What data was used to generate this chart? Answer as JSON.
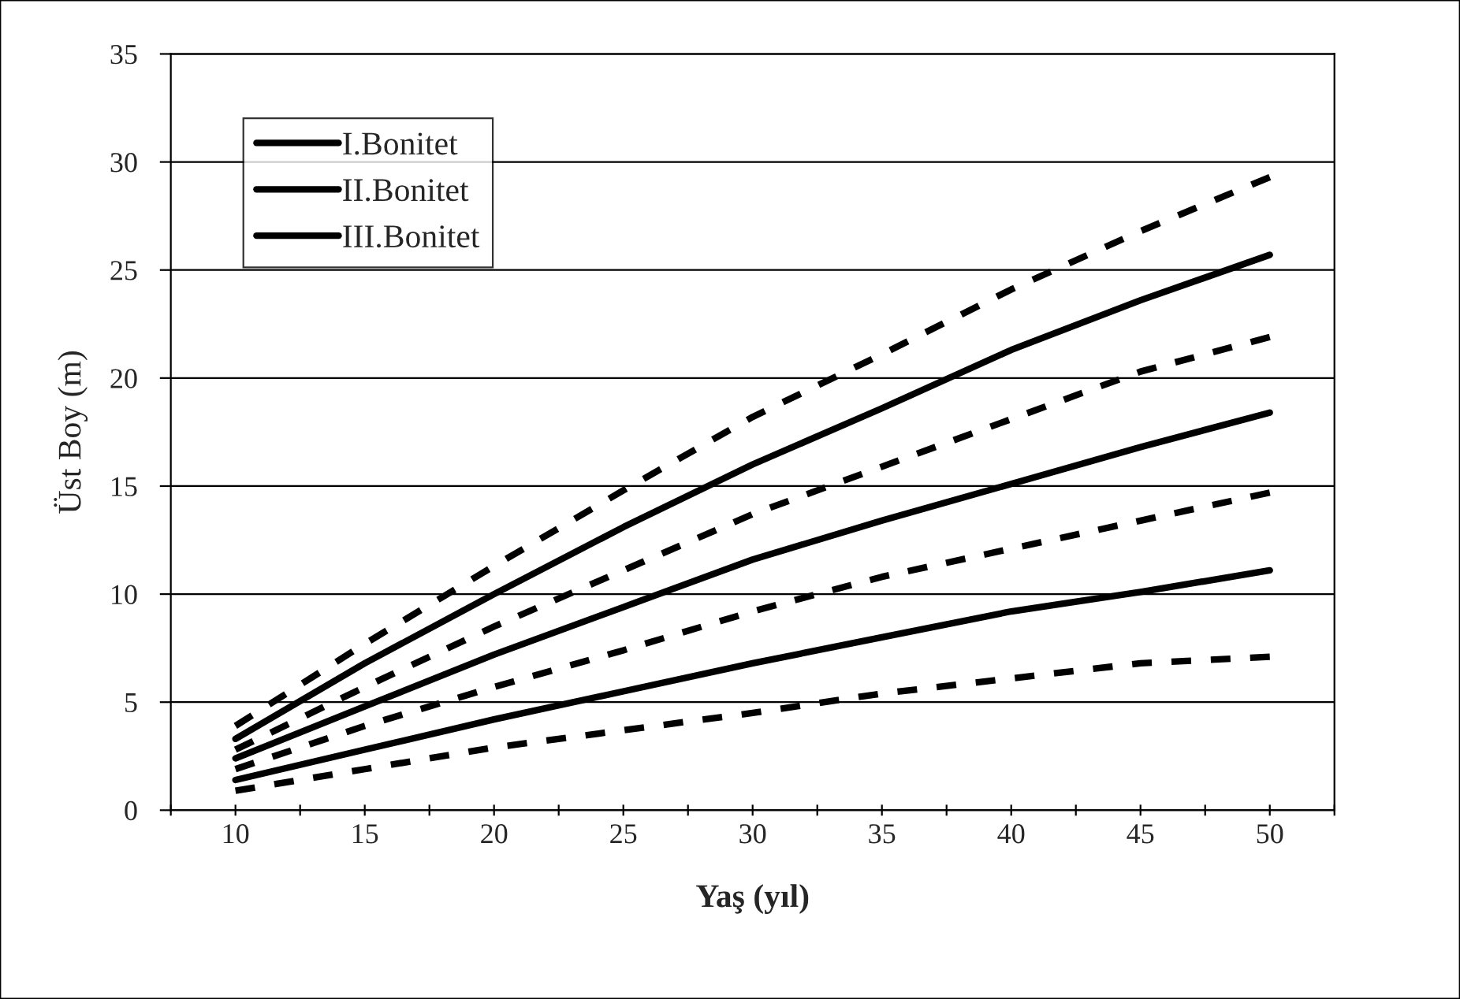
{
  "chart_data": {
    "type": "line",
    "xlabel": "Yaş (yıl)",
    "ylabel": "Üst Boy (m)",
    "x": [
      10,
      15,
      20,
      25,
      30,
      35,
      40,
      45,
      50
    ],
    "series": [
      {
        "name": "I.Bonitet",
        "color": "#000000",
        "line_style": "solid",
        "values": [
          3.3,
          6.8,
          10.0,
          13.1,
          16.0,
          18.6,
          21.3,
          23.6,
          25.7
        ]
      },
      {
        "name": "II.Bonitet",
        "color": "#000000",
        "line_style": "solid",
        "values": [
          2.4,
          4.8,
          7.2,
          9.4,
          11.6,
          13.4,
          15.1,
          16.8,
          18.4
        ]
      },
      {
        "name": "III.Bonitet",
        "color": "#000000",
        "line_style": "solid",
        "values": [
          1.4,
          2.8,
          4.2,
          5.5,
          6.8,
          8.0,
          9.2,
          10.1,
          11.1
        ]
      },
      {
        "color": "#000000",
        "line_style": "dashed",
        "values": [
          3.9,
          7.7,
          11.3,
          14.8,
          18.2,
          21.1,
          24.1,
          26.8,
          29.3
        ]
      },
      {
        "color": "#000000",
        "line_style": "dashed",
        "values": [
          2.8,
          5.7,
          8.5,
          11.1,
          13.7,
          15.9,
          18.1,
          20.3,
          21.9
        ]
      },
      {
        "color": "#000000",
        "line_style": "dashed",
        "values": [
          1.9,
          3.9,
          5.7,
          7.4,
          9.2,
          10.8,
          12.1,
          13.4,
          14.7
        ]
      },
      {
        "color": "#000000",
        "line_style": "dashed",
        "values": [
          0.9,
          1.9,
          2.9,
          3.7,
          4.5,
          5.4,
          6.1,
          6.8,
          7.1
        ]
      }
    ],
    "xlim": [
      7.5,
      52.5
    ],
    "xticks": [
      {
        "value": 7.5,
        "label": null
      },
      10,
      {
        "value": 12.5,
        "label": null
      },
      15,
      {
        "value": 17.5,
        "label": null
      },
      20,
      {
        "value": 22.5,
        "label": null
      },
      25,
      {
        "value": 27.5,
        "label": null
      },
      30,
      {
        "value": 32.5,
        "label": null
      },
      35,
      {
        "value": 37.5,
        "label": null
      },
      40,
      {
        "value": 42.5,
        "label": null
      },
      45,
      {
        "value": 47.5,
        "label": null
      },
      50,
      {
        "value": 52.5,
        "label": null
      }
    ],
    "ylim": [
      0,
      35
    ],
    "yticks": [
      0,
      5,
      10,
      15,
      20,
      25,
      30,
      35
    ],
    "grid": "y",
    "legend": "top left",
    "marker": "none"
  }
}
